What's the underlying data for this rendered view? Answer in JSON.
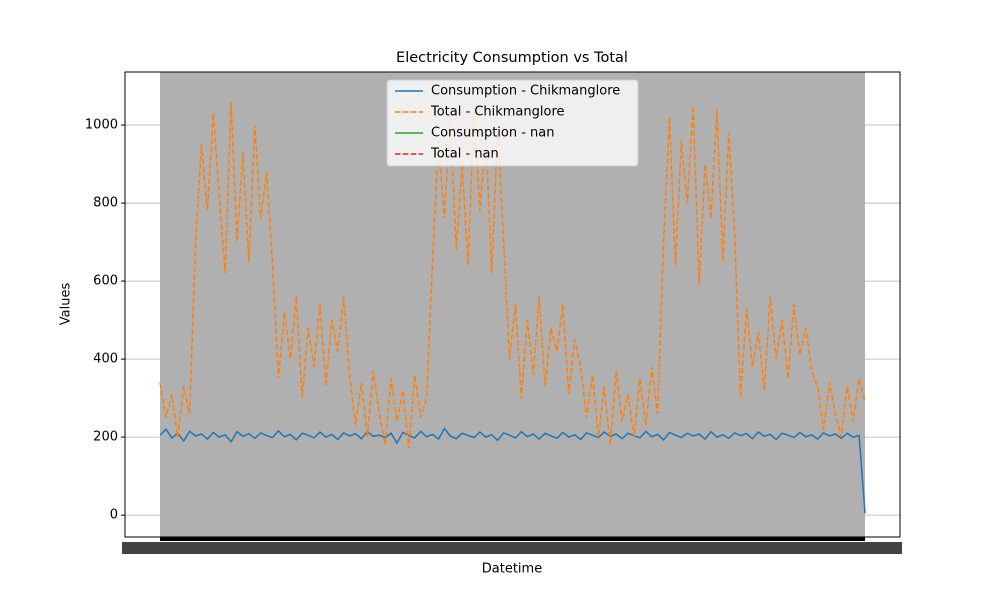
{
  "chart_data": {
    "type": "line",
    "title": "Electricity Consumption vs Total",
    "xlabel": "Datetime",
    "ylabel": "Values",
    "categories": [
      null,
      null,
      null,
      null,
      null,
      null,
      null,
      null,
      null,
      null,
      null,
      null,
      null,
      null,
      null,
      null,
      null,
      null,
      null,
      null,
      null,
      null,
      null,
      null,
      null,
      null,
      null,
      null,
      null,
      null,
      null,
      null,
      null,
      null,
      null,
      null,
      null,
      null,
      null,
      null,
      null,
      null,
      null,
      null,
      null,
      null,
      null,
      null,
      null,
      null,
      null,
      null,
      null,
      null,
      null,
      null,
      null,
      null,
      null,
      null,
      null,
      null,
      null,
      null,
      null,
      null,
      null,
      null,
      null,
      null,
      null,
      null,
      null,
      null,
      null,
      null,
      null,
      null,
      null,
      null,
      null,
      null,
      null,
      null,
      null,
      null,
      null,
      null,
      null,
      null,
      null,
      null,
      null,
      null,
      null,
      null,
      null,
      null,
      null,
      null,
      null,
      null,
      null,
      null,
      null,
      null,
      null,
      null,
      null,
      null,
      null,
      null,
      null,
      null,
      null,
      null,
      null,
      null,
      null,
      null
    ],
    "series": [
      {
        "name": "Consumption - Chikmanglore",
        "color": "#1f77b4",
        "dash": "solid",
        "values": [
          205,
          220,
          198,
          210,
          190,
          215,
          203,
          208,
          195,
          212,
          200,
          206,
          188,
          214,
          202,
          209,
          197,
          211,
          204,
          199,
          216,
          201,
          207,
          193,
          210,
          205,
          198,
          213,
          200,
          207,
          194,
          211,
          203,
          209,
          196,
          214,
          202,
          205,
          199,
          210,
          185,
          212,
          204,
          198,
          215,
          201,
          207,
          195,
          222,
          203,
          196,
          210,
          204,
          199,
          213,
          200,
          206,
          192,
          211,
          205,
          198,
          214,
          201,
          208,
          195,
          210,
          203,
          197,
          212,
          200,
          206,
          194,
          211,
          205,
          199,
          213,
          202,
          208,
          196,
          210,
          204,
          198,
          215,
          201,
          207,
          193,
          212,
          205,
          199,
          210,
          203,
          208,
          195,
          214,
          200,
          206,
          197,
          211,
          204,
          209,
          196,
          213,
          202,
          207,
          194,
          210,
          205,
          199,
          212,
          201,
          206,
          195,
          211,
          203,
          208,
          197,
          210,
          200,
          204,
          5
        ]
      },
      {
        "name": "Total - Chikmanglore",
        "color": "#ff7f0e",
        "dash": "dashed",
        "values": [
          340,
          250,
          310,
          200,
          330,
          260,
          700,
          950,
          780,
          1030,
          820,
          620,
          1060,
          700,
          930,
          650,
          1000,
          760,
          880,
          640,
          350,
          520,
          400,
          560,
          300,
          480,
          380,
          540,
          330,
          500,
          420,
          560,
          360,
          230,
          340,
          200,
          370,
          260,
          180,
          350,
          240,
          320,
          170,
          360,
          250,
          300,
          650,
          960,
          760,
          1020,
          680,
          900,
          640,
          1040,
          780,
          970,
          620,
          1000,
          700,
          400,
          540,
          300,
          500,
          360,
          560,
          330,
          480,
          420,
          540,
          310,
          450,
          380,
          250,
          360,
          200,
          330,
          180,
          370,
          240,
          310,
          200,
          350,
          230,
          380,
          260,
          700,
          1020,
          640,
          960,
          800,
          1050,
          590,
          900,
          760,
          1040,
          650,
          980,
          720,
          300,
          530,
          380,
          470,
          320,
          560,
          400,
          500,
          350,
          540,
          410,
          480,
          370,
          330,
          220,
          340,
          260,
          200,
          330,
          240,
          350,
          290
        ]
      },
      {
        "name": "Consumption - nan",
        "color": "#2ca02c",
        "dash": "solid",
        "values": [
          null,
          null,
          null,
          null,
          null,
          null,
          null,
          null,
          null,
          null,
          null,
          null,
          null,
          null,
          null,
          null,
          null,
          null,
          null,
          null,
          null,
          null,
          null,
          null,
          null,
          null,
          null,
          null,
          null,
          null,
          null,
          null,
          null,
          null,
          null,
          null,
          null,
          null,
          null,
          null,
          null,
          null,
          null,
          null,
          null,
          null,
          null,
          null,
          null,
          null,
          null,
          null,
          null,
          null,
          null,
          null,
          null,
          null,
          null,
          null,
          null,
          null,
          null,
          null,
          null,
          null,
          null,
          null,
          null,
          null,
          null,
          null,
          null,
          null,
          null,
          null,
          null,
          null,
          null,
          null,
          null,
          null,
          null,
          null,
          null,
          null,
          null,
          null,
          null,
          null,
          null,
          null,
          null,
          null,
          null,
          null,
          null,
          null,
          null,
          null,
          null,
          null,
          null,
          null,
          null,
          null,
          null,
          null,
          null,
          null,
          null,
          null,
          null,
          null,
          null,
          null,
          null,
          null,
          null,
          null
        ]
      },
      {
        "name": "Total - nan",
        "color": "#d62728",
        "dash": "dashed",
        "values": [
          null,
          null,
          null,
          null,
          null,
          null,
          null,
          null,
          null,
          null,
          null,
          null,
          null,
          null,
          null,
          null,
          null,
          null,
          null,
          null,
          null,
          null,
          null,
          null,
          null,
          null,
          null,
          null,
          null,
          null,
          null,
          null,
          null,
          null,
          null,
          null,
          null,
          null,
          null,
          null,
          null,
          null,
          null,
          null,
          null,
          null,
          null,
          null,
          null,
          null,
          null,
          null,
          null,
          null,
          null,
          null,
          null,
          null,
          null,
          null,
          null,
          null,
          null,
          null,
          null,
          null,
          null,
          null,
          null,
          null,
          null,
          null,
          null,
          null,
          null,
          null,
          null,
          null,
          null,
          null,
          null,
          null,
          null,
          null,
          null,
          null,
          null,
          null,
          null,
          null,
          null,
          null,
          null,
          null,
          null,
          null,
          null,
          null,
          null,
          null,
          null,
          null,
          null,
          null,
          null,
          null,
          null,
          null,
          null,
          null,
          null,
          null,
          null,
          null,
          null,
          null,
          null,
          null,
          null,
          null
        ]
      }
    ],
    "ylim": [
      -56,
      1136
    ],
    "yticks": [
      0,
      200,
      400,
      600,
      800,
      1000
    ],
    "grid": true,
    "legend": "upper center"
  }
}
